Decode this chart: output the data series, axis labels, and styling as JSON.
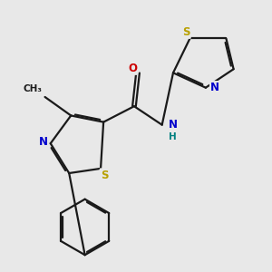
{
  "bg_color": "#e8e8e8",
  "bond_color": "#1a1a1a",
  "bond_lw": 1.6,
  "dbo": 0.018,
  "atom_colors": {
    "S": "#b8a000",
    "N": "#0000cc",
    "O": "#cc0000",
    "NH": "#0000cc",
    "H": "#008080",
    "C": "#1a1a1a"
  },
  "font_size": 8.5,
  "figsize": [
    3.0,
    3.0
  ],
  "dpi": 100
}
